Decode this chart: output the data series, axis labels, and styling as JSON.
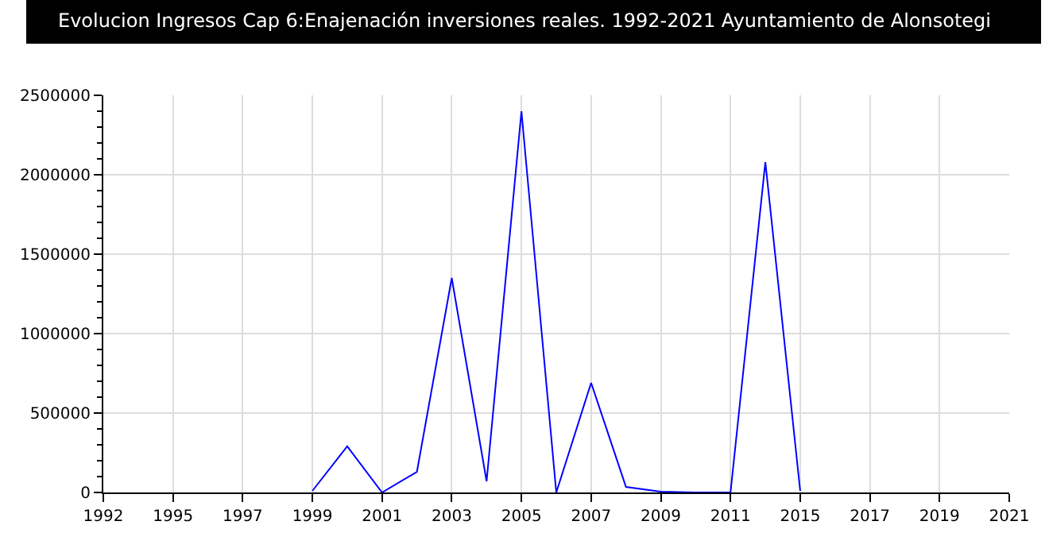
{
  "chart_data": {
    "type": "line",
    "title": "Evolucion Ingresos Cap 6:Enajenación inversiones reales. 1992-2021 Ayuntamiento de Alonsotegi",
    "categories": [
      "1992",
      null,
      "1995",
      null,
      "1997",
      null,
      "1999",
      null,
      "2001",
      null,
      "2003",
      null,
      "2005",
      null,
      "2007",
      null,
      "2009",
      null,
      "2011",
      null,
      "2015",
      null,
      "2017",
      null,
      "2019",
      null,
      "2021"
    ],
    "series": [
      {
        "color": "#0000ff",
        "values": [
          null,
          null,
          null,
          null,
          null,
          null,
          10000,
          290000,
          0,
          130000,
          1350000,
          70000,
          2400000,
          0,
          690000,
          35000,
          5000,
          0,
          0,
          2080000,
          10000,
          null,
          null,
          null,
          null,
          null,
          null
        ]
      }
    ],
    "ylim": [
      0,
      2500000
    ],
    "yticks": [
      0,
      500000,
      1000000,
      1500000,
      2000000,
      2500000
    ],
    "grid": true,
    "legend": false,
    "marker": "none",
    "line_style": "solid"
  }
}
